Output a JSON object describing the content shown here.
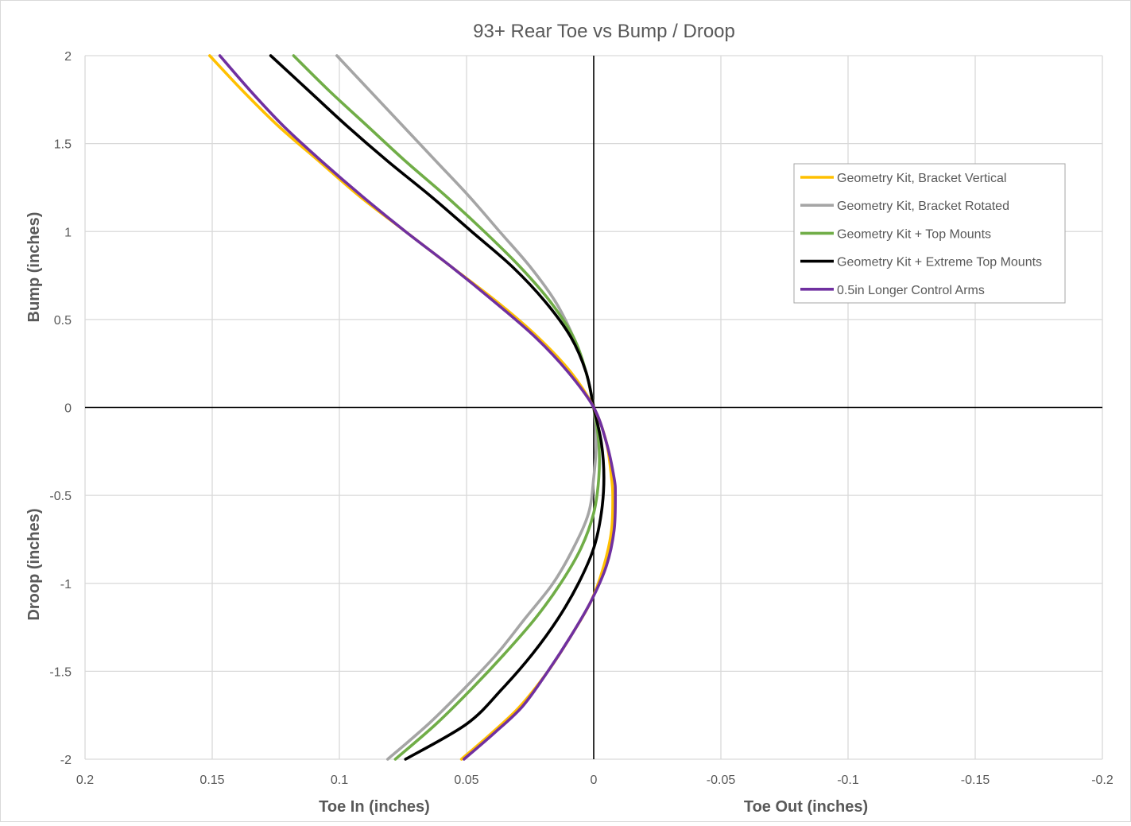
{
  "chart_data": {
    "type": "line",
    "title": "93+ Rear Toe vs Bump / Droop",
    "xlabel_left": "Toe In (inches)",
    "xlabel_right": "Toe Out (inches)",
    "ylabel_top": "Bump (inches)",
    "ylabel_bottom": "Droop (inches)",
    "xlim": [
      0.2,
      -0.2
    ],
    "ylim": [
      -2,
      2
    ],
    "x_ticks": [
      0.2,
      0.15,
      0.1,
      0.05,
      0,
      -0.05,
      -0.1,
      -0.15,
      -0.2
    ],
    "x_tick_labels": [
      "0.2",
      "0.15",
      "0.1",
      "0.05",
      "0",
      "-0.05",
      "-0.1",
      "-0.15",
      "-0.2"
    ],
    "y_ticks": [
      2,
      1.5,
      1,
      0.5,
      0,
      -0.5,
      -1,
      -1.5,
      -2
    ],
    "y_tick_labels": [
      "2",
      "1.5",
      "1",
      "0.5",
      "0",
      "-0.5",
      "-1",
      "-1.5",
      "-2"
    ],
    "grid": true,
    "legend_position": "top-right",
    "series": [
      {
        "name": "Geometry Kit, Bracket Vertical",
        "color": "#FFC000",
        "points": [
          [
            0.151,
            2
          ],
          [
            0.138,
            1.8
          ],
          [
            0.124,
            1.6
          ],
          [
            0.108,
            1.4
          ],
          [
            0.092,
            1.2
          ],
          [
            0.074,
            1
          ],
          [
            0.056,
            0.8
          ],
          [
            0.038,
            0.6
          ],
          [
            0.022,
            0.4
          ],
          [
            0.009,
            0.2
          ],
          [
            0,
            0
          ],
          [
            -0.005,
            -0.2
          ],
          [
            -0.007,
            -0.4
          ],
          [
            -0.0075,
            -0.5
          ],
          [
            -0.007,
            -0.7
          ],
          [
            -0.004,
            -0.9
          ],
          [
            0.001,
            -1.1
          ],
          [
            0.009,
            -1.3
          ],
          [
            0.018,
            -1.5
          ],
          [
            0.029,
            -1.7
          ],
          [
            0.04,
            -1.85
          ],
          [
            0.052,
            -2
          ]
        ]
      },
      {
        "name": "Geometry Kit, Bracket Rotated",
        "color": "#A5A5A5",
        "points": [
          [
            0.101,
            2
          ],
          [
            0.088,
            1.8
          ],
          [
            0.075,
            1.6
          ],
          [
            0.062,
            1.4
          ],
          [
            0.049,
            1.2
          ],
          [
            0.037,
            1
          ],
          [
            0.025,
            0.8
          ],
          [
            0.015,
            0.6
          ],
          [
            0.008,
            0.4
          ],
          [
            0.003,
            0.2
          ],
          [
            0,
            0
          ],
          [
            -0.001,
            -0.2
          ],
          [
            0,
            -0.4
          ],
          [
            0.002,
            -0.6
          ],
          [
            0.008,
            -0.8
          ],
          [
            0.016,
            -1
          ],
          [
            0.027,
            -1.2
          ],
          [
            0.038,
            -1.4
          ],
          [
            0.051,
            -1.6
          ],
          [
            0.065,
            -1.8
          ],
          [
            0.081,
            -2
          ]
        ]
      },
      {
        "name": "Geometry Kit + Top Mounts",
        "color": "#70AD47",
        "points": [
          [
            0.118,
            2
          ],
          [
            0.104,
            1.8
          ],
          [
            0.089,
            1.6
          ],
          [
            0.074,
            1.4
          ],
          [
            0.058,
            1.2
          ],
          [
            0.043,
            1
          ],
          [
            0.029,
            0.8
          ],
          [
            0.017,
            0.6
          ],
          [
            0.008,
            0.4
          ],
          [
            0.003,
            0.2
          ],
          [
            0,
            0
          ],
          [
            -0.002,
            -0.2
          ],
          [
            -0.002,
            -0.4
          ],
          [
            0,
            -0.6
          ],
          [
            0.005,
            -0.8
          ],
          [
            0.013,
            -1
          ],
          [
            0.023,
            -1.2
          ],
          [
            0.035,
            -1.4
          ],
          [
            0.048,
            -1.6
          ],
          [
            0.062,
            -1.8
          ],
          [
            0.078,
            -2
          ]
        ]
      },
      {
        "name": "Geometry Kit + Extreme Top Mounts",
        "color": "#000000",
        "points": [
          [
            0.127,
            2
          ],
          [
            0.112,
            1.8
          ],
          [
            0.097,
            1.6
          ],
          [
            0.081,
            1.4
          ],
          [
            0.064,
            1.2
          ],
          [
            0.048,
            1
          ],
          [
            0.032,
            0.8
          ],
          [
            0.019,
            0.6
          ],
          [
            0.009,
            0.4
          ],
          [
            0.003,
            0.2
          ],
          [
            0,
            0
          ],
          [
            -0.003,
            -0.2
          ],
          [
            -0.004,
            -0.4
          ],
          [
            -0.003,
            -0.6
          ],
          [
            0,
            -0.8
          ],
          [
            0.006,
            -1
          ],
          [
            0.014,
            -1.2
          ],
          [
            0.024,
            -1.4
          ],
          [
            0.036,
            -1.6
          ],
          [
            0.05,
            -1.8
          ],
          [
            0.074,
            -2
          ]
        ]
      },
      {
        "name": "0.5in Longer Control Arms",
        "color": "#7030A0",
        "points": [
          [
            0.147,
            2
          ],
          [
            0.135,
            1.8
          ],
          [
            0.122,
            1.6
          ],
          [
            0.107,
            1.4
          ],
          [
            0.091,
            1.2
          ],
          [
            0.074,
            1
          ],
          [
            0.056,
            0.8
          ],
          [
            0.039,
            0.6
          ],
          [
            0.023,
            0.4
          ],
          [
            0.01,
            0.2
          ],
          [
            0,
            0
          ],
          [
            -0.005,
            -0.2
          ],
          [
            -0.008,
            -0.4
          ],
          [
            -0.0085,
            -0.5
          ],
          [
            -0.008,
            -0.7
          ],
          [
            -0.005,
            -0.9
          ],
          [
            0.001,
            -1.1
          ],
          [
            0.009,
            -1.3
          ],
          [
            0.018,
            -1.5
          ],
          [
            0.028,
            -1.7
          ],
          [
            0.039,
            -1.85
          ],
          [
            0.051,
            -2
          ]
        ]
      }
    ]
  }
}
